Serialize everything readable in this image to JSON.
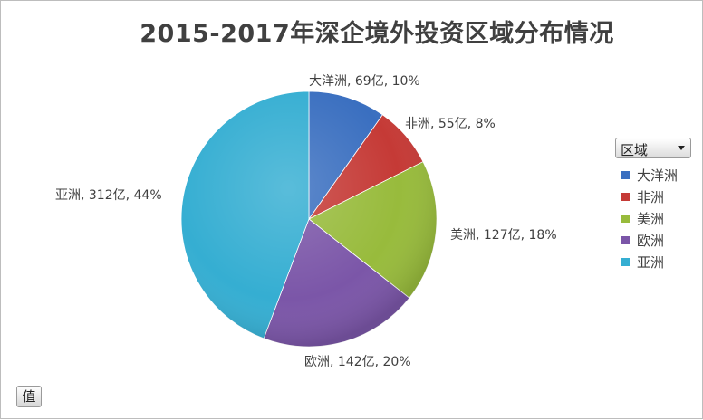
{
  "chart_data": {
    "type": "pie",
    "title": "2015-2017年深企境外投资区域分布情况",
    "categories": [
      "大洋洲",
      "非洲",
      "美洲",
      "欧洲",
      "亚洲"
    ],
    "values": [
      69,
      55,
      127,
      142,
      312
    ],
    "percentages": [
      10,
      8,
      18,
      20,
      44
    ],
    "data_labels": [
      "大洋洲, 69亿, 10%",
      "非洲, 55亿, 8%",
      "美洲, 127亿, 18%",
      "欧洲, 142亿, 20%",
      "亚洲, 312亿, 44%"
    ],
    "colors": [
      "#3a6fc0",
      "#c53a36",
      "#98bb3c",
      "#7b56a8",
      "#35aed2"
    ],
    "legend_position": "right"
  },
  "legend_filter": {
    "label": "区域",
    "icon": "dropdown-arrow"
  },
  "value_button": {
    "label": "值"
  }
}
